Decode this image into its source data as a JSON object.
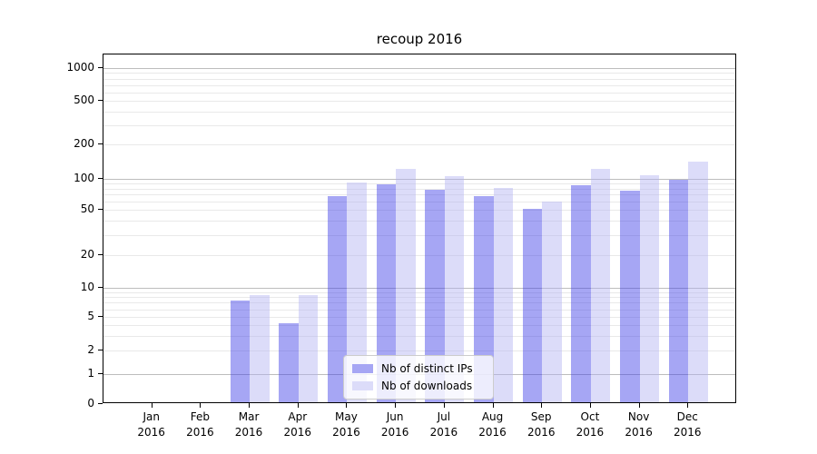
{
  "title": "recoup 2016",
  "legend": {
    "items": [
      {
        "label": "Nb of distinct IPs",
        "color": "#a6a6f4"
      },
      {
        "label": "Nb of downloads",
        "color": "#dcdcf9"
      }
    ]
  },
  "chart_data": {
    "type": "bar",
    "title": "recoup 2016",
    "categories": [
      "Jan 2016",
      "Feb 2016",
      "Mar 2016",
      "Apr 2016",
      "May 2016",
      "Jun 2016",
      "Jul 2016",
      "Aug 2016",
      "Sep 2016",
      "Oct 2016",
      "Nov 2016",
      "Dec 2016"
    ],
    "xtick_labels": [
      {
        "top": "Jan",
        "bottom": "2016"
      },
      {
        "top": "Feb",
        "bottom": "2016"
      },
      {
        "top": "Mar",
        "bottom": "2016"
      },
      {
        "top": "Apr",
        "bottom": "2016"
      },
      {
        "top": "May",
        "bottom": "2016"
      },
      {
        "top": "Jun",
        "bottom": "2016"
      },
      {
        "top": "Jul",
        "bottom": "2016"
      },
      {
        "top": "Aug",
        "bottom": "2016"
      },
      {
        "top": "Sep",
        "bottom": "2016"
      },
      {
        "top": "Oct",
        "bottom": "2016"
      },
      {
        "top": "Nov",
        "bottom": "2016"
      },
      {
        "top": "Dec",
        "bottom": "2016"
      }
    ],
    "series": [
      {
        "name": "Nb of distinct IPs",
        "color": "#a6a6f4",
        "values": [
          0,
          0,
          7,
          4,
          65,
          85,
          75,
          65,
          49,
          82,
          74,
          93
        ]
      },
      {
        "name": "Nb of downloads",
        "color": "#dcdcf9",
        "values": [
          0,
          0,
          8,
          8,
          87,
          118,
          101,
          78,
          58,
          116,
          103,
          135
        ]
      }
    ],
    "yscale": "symlog",
    "yticks": [
      0,
      1,
      2,
      5,
      10,
      20,
      50,
      100,
      200,
      500,
      1000
    ],
    "gridlines_major": [
      1,
      10,
      100,
      1000
    ],
    "gridlines_minor": [
      2,
      3,
      4,
      5,
      6,
      7,
      8,
      9,
      20,
      30,
      40,
      50,
      60,
      70,
      80,
      90,
      200,
      300,
      400,
      500,
      600,
      700,
      800,
      900
    ],
    "ylim": [
      0,
      1333
    ],
    "grid": "horizontal major+minor",
    "legend_position": "lower center inside",
    "colors": {
      "major_grid": "#bdbdbd",
      "minor_grid": "#e9e9e9",
      "spine": "#000000"
    }
  }
}
